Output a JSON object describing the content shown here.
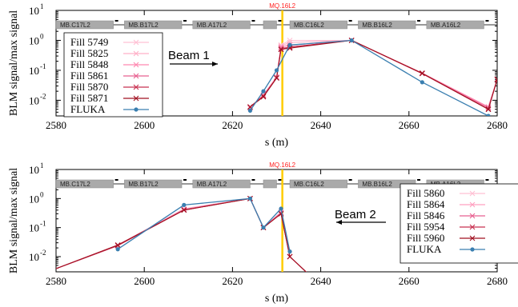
{
  "chart_data": [
    {
      "type": "line",
      "ylabel": "BLM signal/max signal",
      "xlabel": "s (m)",
      "xlim": [
        2580,
        2680
      ],
      "ylim": [
        0.003,
        10
      ],
      "yscale": "log",
      "xticks": [
        "2580",
        "2600",
        "2620",
        "2640",
        "2660",
        "2680"
      ],
      "yticks": [
        {
          "base": "10",
          "exp": "1"
        },
        {
          "base": "10",
          "exp": "0"
        },
        {
          "base": "10",
          "exp": "-1"
        },
        {
          "base": "10",
          "exp": "-2"
        }
      ],
      "quadrupole_label": "MQ.16L2",
      "quadrupole_s": 2631.3,
      "magnets": [
        {
          "label": "MB.C17L2",
          "x1": 2580,
          "x2": 2593
        },
        {
          "label": "MB.B17L2",
          "x1": 2595.5,
          "x2": 2608.5
        },
        {
          "label": "MB.A17L2",
          "x1": 2611,
          "x2": 2624
        },
        {
          "label": "",
          "x1": 2627,
          "x2": 2630
        },
        {
          "label": "MB.C16L2",
          "x1": 2633,
          "x2": 2646
        },
        {
          "label": "MB.B16L2",
          "x1": 2648.5,
          "x2": 2661.5
        },
        {
          "label": "MB.A16L2",
          "x1": 2664,
          "x2": 2677
        }
      ],
      "beam_label": "Beam 1",
      "beam_direction": "right",
      "legend_position": "left",
      "series": [
        {
          "name": "Fill 5749",
          "color": "#ffc0d4",
          "marker": "x",
          "x": [
            2624,
            2627,
            2630,
            2631,
            2633,
            2647,
            2663,
            2678,
            2680
          ],
          "y": [
            0.006,
            0.015,
            0.06,
            0.7,
            1.0,
            1.0,
            0.08,
            0.006,
            0.05
          ]
        },
        {
          "name": "Fill 5825",
          "color": "#ffb0c8",
          "marker": "x",
          "x": [
            2624,
            2627,
            2630,
            2631,
            2633,
            2647,
            2663,
            2678,
            2680
          ],
          "y": [
            0.006,
            0.014,
            0.058,
            0.65,
            0.85,
            1.0,
            0.082,
            0.006,
            0.05
          ]
        },
        {
          "name": "Fill 5848",
          "color": "#ff88b0",
          "marker": "x",
          "x": [
            2624,
            2627,
            2630,
            2631,
            2633,
            2647,
            2663,
            2678,
            2680
          ],
          "y": [
            0.0055,
            0.015,
            0.06,
            0.6,
            0.7,
            1.0,
            0.08,
            0.006,
            0.05
          ]
        },
        {
          "name": "Fill 5861",
          "color": "#e86090",
          "marker": "x",
          "x": [
            2624,
            2627,
            2630,
            2631,
            2633,
            2647,
            2663,
            2678,
            2680
          ],
          "y": [
            0.006,
            0.014,
            0.056,
            0.55,
            0.6,
            1.0,
            0.078,
            0.0055,
            0.05
          ]
        },
        {
          "name": "Fill 5870",
          "color": "#c83050",
          "marker": "x",
          "x": [
            2624,
            2627,
            2630,
            2631,
            2633,
            2647,
            2663,
            2678,
            2680
          ],
          "y": [
            0.006,
            0.014,
            0.056,
            0.5,
            0.6,
            1.0,
            0.078,
            0.005,
            0.05
          ]
        },
        {
          "name": "Fill 5871",
          "color": "#a01020",
          "marker": "x",
          "x": [
            2624,
            2627,
            2630,
            2631,
            2633,
            2647,
            2663,
            2678,
            2680
          ],
          "y": [
            0.006,
            0.013,
            0.055,
            0.5,
            0.55,
            1.0,
            0.08,
            0.005,
            0.05
          ]
        },
        {
          "name": "FLUKA",
          "color": "#3a7fb0",
          "marker": "circle",
          "x": [
            2624,
            2627,
            2630,
            2633,
            2647,
            2663,
            2678
          ],
          "y": [
            0.0045,
            0.02,
            0.1,
            0.7,
            1.0,
            0.04,
            0.003
          ]
        }
      ]
    },
    {
      "type": "line",
      "ylabel": "BLM signal/max signal",
      "xlabel": "s (m)",
      "xlim": [
        2580,
        2680
      ],
      "ylim": [
        0.003,
        10
      ],
      "yscale": "log",
      "xticks": [
        "2580",
        "2600",
        "2620",
        "2640",
        "2660",
        "2680"
      ],
      "yticks": [
        {
          "base": "10",
          "exp": "1"
        },
        {
          "base": "10",
          "exp": "0"
        },
        {
          "base": "10",
          "exp": "-1"
        },
        {
          "base": "10",
          "exp": "-2"
        }
      ],
      "quadrupole_label": "MQ.16L2",
      "quadrupole_s": 2631.3,
      "magnets": [
        {
          "label": "MB.C17L2",
          "x1": 2580,
          "x2": 2593
        },
        {
          "label": "MB.B17L2",
          "x1": 2595.5,
          "x2": 2608.5
        },
        {
          "label": "MB.A17L2",
          "x1": 2611,
          "x2": 2624
        },
        {
          "label": "",
          "x1": 2627,
          "x2": 2630
        },
        {
          "label": "MB.C16L2",
          "x1": 2633,
          "x2": 2646
        },
        {
          "label": "MB.B16L2",
          "x1": 2648.5,
          "x2": 2661.5
        },
        {
          "label": "MB.A16L2",
          "x1": 2664,
          "x2": 2677
        }
      ],
      "beam_label": "Beam 2",
      "beam_direction": "left",
      "legend_position": "right",
      "series": [
        {
          "name": "Fill 5860",
          "color": "#ffc0d4",
          "marker": "x",
          "x": [
            2575,
            2594,
            2609,
            2624,
            2627,
            2631,
            2633,
            2640
          ],
          "y": [
            0.002,
            0.025,
            0.45,
            1.0,
            0.1,
            0.35,
            0.01,
            0.001
          ]
        },
        {
          "name": "Fill 5864",
          "color": "#ffa0c0",
          "marker": "x",
          "x": [
            2575,
            2594,
            2609,
            2624,
            2627,
            2631,
            2633,
            2640
          ],
          "y": [
            0.002,
            0.025,
            0.42,
            1.0,
            0.1,
            0.33,
            0.01,
            0.001
          ]
        },
        {
          "name": "Fill 5846",
          "color": "#e86090",
          "marker": "x",
          "x": [
            2575,
            2594,
            2609,
            2624,
            2627,
            2631,
            2633,
            2640
          ],
          "y": [
            0.002,
            0.024,
            0.42,
            1.0,
            0.1,
            0.32,
            0.01,
            0.001
          ]
        },
        {
          "name": "Fill 5954",
          "color": "#c83050",
          "marker": "x",
          "x": [
            2575,
            2594,
            2609,
            2624,
            2627,
            2631,
            2633,
            2640
          ],
          "y": [
            0.002,
            0.024,
            0.4,
            1.0,
            0.1,
            0.3,
            0.01,
            0.001
          ]
        },
        {
          "name": "Fill 5960",
          "color": "#a01020",
          "marker": "x",
          "x": [
            2575,
            2594,
            2609,
            2624,
            2627,
            2631,
            2633,
            2640
          ],
          "y": [
            0.002,
            0.025,
            0.4,
            1.0,
            0.1,
            0.3,
            0.01,
            0.001
          ]
        },
        {
          "name": "FLUKA",
          "color": "#3a7fb0",
          "marker": "circle",
          "x": [
            2594,
            2609,
            2624,
            2627,
            2631,
            2633
          ],
          "y": [
            0.018,
            0.6,
            1.0,
            0.1,
            0.45,
            0.015
          ]
        }
      ]
    }
  ]
}
